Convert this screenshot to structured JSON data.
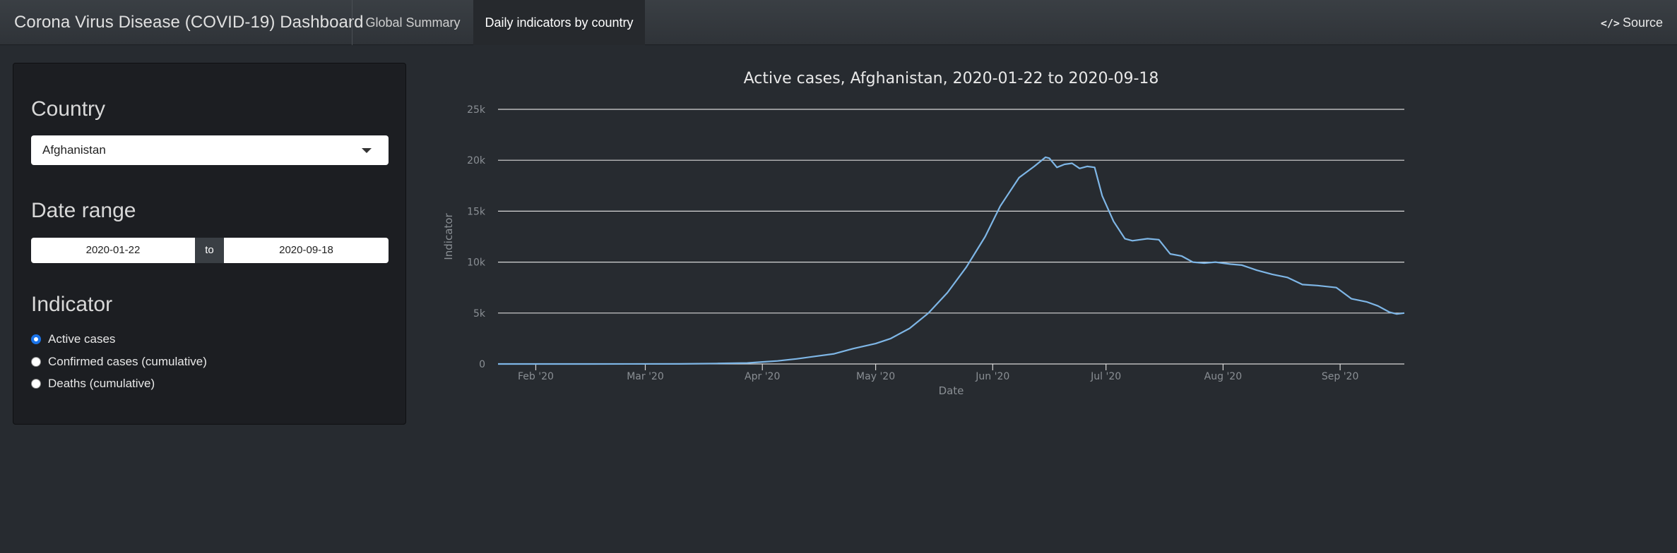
{
  "navbar": {
    "brand": "Corona Virus Disease (COVID-19) Dashboard",
    "tabs": [
      {
        "label": "Global Summary",
        "active": false
      },
      {
        "label": "Daily indicators by country",
        "active": true
      }
    ],
    "source_icon": "</>",
    "source_label": "Source"
  },
  "sidebar": {
    "country_heading": "Country",
    "country_value": "Afghanistan",
    "date_heading": "Date range",
    "date_start": "2020-01-22",
    "date_sep": "to",
    "date_end": "2020-09-18",
    "indicator_heading": "Indicator",
    "indicators": [
      {
        "label": "Active cases",
        "checked": true
      },
      {
        "label": "Confirmed cases (cumulative)",
        "checked": false
      },
      {
        "label": "Deaths (cumulative)",
        "checked": false
      }
    ]
  },
  "colors": {
    "accent": "#1a73e8",
    "line": "#7eb6e6",
    "background": "#272b30",
    "panel": "#1c1e22"
  },
  "chart_data": {
    "type": "line",
    "title": "Active cases, Afghanistan, 2020-01-22 to 2020-09-18",
    "xlabel": "Date",
    "ylabel": "Indicator",
    "ylim": [
      0,
      25000
    ],
    "yticks": [
      0,
      5000,
      10000,
      15000,
      20000,
      25000
    ],
    "yticklabels": [
      "0",
      "5k",
      "10k",
      "15k",
      "20k",
      "25k"
    ],
    "xlim": [
      "2020-01-22",
      "2020-09-18"
    ],
    "xticks": [
      "2020-02-01",
      "2020-03-01",
      "2020-04-01",
      "2020-05-01",
      "2020-06-01",
      "2020-07-01",
      "2020-08-01",
      "2020-09-01"
    ],
    "xticklabels": [
      "Feb '20",
      "Mar '20",
      "Apr '20",
      "May '20",
      "Jun '20",
      "Jul '20",
      "Aug '20",
      "Sep '20"
    ],
    "grid": true,
    "series": [
      {
        "x": [
          "2020-01-22",
          "2020-02-15",
          "2020-03-10",
          "2020-03-20",
          "2020-03-28",
          "2020-04-01",
          "2020-04-05",
          "2020-04-10",
          "2020-04-15",
          "2020-04-20",
          "2020-04-25",
          "2020-05-01",
          "2020-05-05",
          "2020-05-10",
          "2020-05-15",
          "2020-05-20",
          "2020-05-25",
          "2020-05-30",
          "2020-06-03",
          "2020-06-08",
          "2020-06-12",
          "2020-06-15",
          "2020-06-16",
          "2020-06-18",
          "2020-06-20",
          "2020-06-22",
          "2020-06-24",
          "2020-06-26",
          "2020-06-28",
          "2020-06-30",
          "2020-07-03",
          "2020-07-06",
          "2020-07-08",
          "2020-07-12",
          "2020-07-15",
          "2020-07-18",
          "2020-07-21",
          "2020-07-24",
          "2020-07-27",
          "2020-07-30",
          "2020-08-03",
          "2020-08-06",
          "2020-08-10",
          "2020-08-14",
          "2020-08-18",
          "2020-08-22",
          "2020-08-26",
          "2020-08-31",
          "2020-09-04",
          "2020-09-08",
          "2020-09-11",
          "2020-09-14",
          "2020-09-16",
          "2020-09-18"
        ],
        "y": [
          0,
          0,
          10,
          50,
          100,
          200,
          300,
          500,
          750,
          1000,
          1500,
          2000,
          2500,
          3500,
          5000,
          7000,
          9500,
          12500,
          15500,
          18300,
          19400,
          20300,
          20200,
          19300,
          19600,
          19700,
          19200,
          19400,
          19300,
          16500,
          14000,
          12300,
          12100,
          12300,
          12200,
          10800,
          10600,
          10000,
          9900,
          10000,
          9800,
          9700,
          9200,
          8800,
          8500,
          7800,
          7700,
          7500,
          6400,
          6100,
          5700,
          5100,
          4900,
          5000
        ]
      }
    ]
  }
}
